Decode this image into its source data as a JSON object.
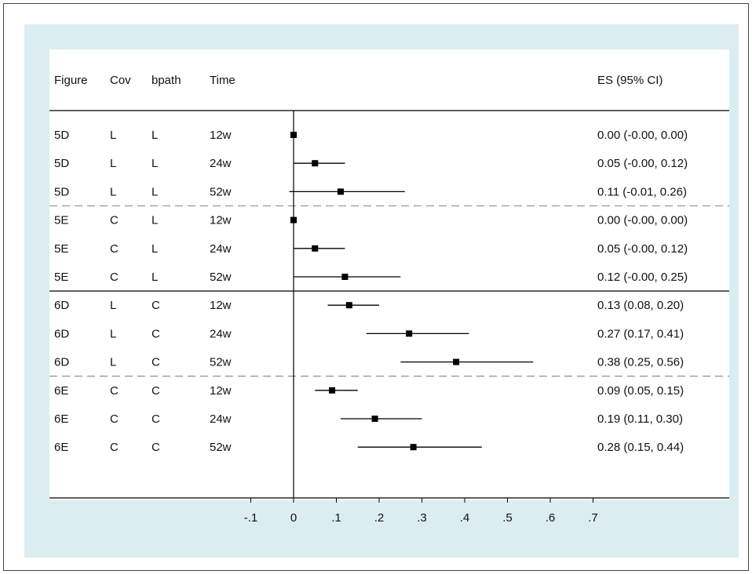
{
  "colors": {
    "outer_background": "#dcedf2",
    "plot_background": "#ffffff",
    "marker": "#000000",
    "group_separator_dashed": "#999999",
    "section_separator_solid": "#000000"
  },
  "chart_data": {
    "type": "forest",
    "columns": [
      "Figure",
      "Cov",
      "bpath",
      "Time"
    ],
    "estimate_column_header": "ES (95% CI)",
    "rows": [
      {
        "figure": "5D",
        "cov": "L",
        "bpath": "L",
        "time": "12w",
        "es": 0.0,
        "lo": -0.0,
        "hi": 0.0,
        "label": "0.00 (-0.00, 0.00)"
      },
      {
        "figure": "5D",
        "cov": "L",
        "bpath": "L",
        "time": "24w",
        "es": 0.05,
        "lo": -0.0,
        "hi": 0.12,
        "label": "0.05 (-0.00, 0.12)"
      },
      {
        "figure": "5D",
        "cov": "L",
        "bpath": "L",
        "time": "52w",
        "es": 0.11,
        "lo": -0.01,
        "hi": 0.26,
        "label": "0.11 (-0.01, 0.26)"
      },
      {
        "figure": "5E",
        "cov": "C",
        "bpath": "L",
        "time": "12w",
        "es": 0.0,
        "lo": -0.0,
        "hi": 0.0,
        "label": "0.00 (-0.00, 0.00)"
      },
      {
        "figure": "5E",
        "cov": "C",
        "bpath": "L",
        "time": "24w",
        "es": 0.05,
        "lo": -0.0,
        "hi": 0.12,
        "label": "0.05 (-0.00, 0.12)"
      },
      {
        "figure": "5E",
        "cov": "C",
        "bpath": "L",
        "time": "52w",
        "es": 0.12,
        "lo": -0.0,
        "hi": 0.25,
        "label": "0.12 (-0.00, 0.25)"
      },
      {
        "figure": "6D",
        "cov": "L",
        "bpath": "C",
        "time": "12w",
        "es": 0.13,
        "lo": 0.08,
        "hi": 0.2,
        "label": "0.13 (0.08, 0.20)"
      },
      {
        "figure": "6D",
        "cov": "L",
        "bpath": "C",
        "time": "24w",
        "es": 0.27,
        "lo": 0.17,
        "hi": 0.41,
        "label": "0.27 (0.17, 0.41)"
      },
      {
        "figure": "6D",
        "cov": "L",
        "bpath": "C",
        "time": "52w",
        "es": 0.38,
        "lo": 0.25,
        "hi": 0.56,
        "label": "0.38 (0.25, 0.56)"
      },
      {
        "figure": "6E",
        "cov": "C",
        "bpath": "C",
        "time": "12w",
        "es": 0.09,
        "lo": 0.05,
        "hi": 0.15,
        "label": "0.09 (0.05, 0.15)"
      },
      {
        "figure": "6E",
        "cov": "C",
        "bpath": "C",
        "time": "24w",
        "es": 0.19,
        "lo": 0.11,
        "hi": 0.3,
        "label": "0.19 (0.11, 0.30)"
      },
      {
        "figure": "6E",
        "cov": "C",
        "bpath": "C",
        "time": "52w",
        "es": 0.28,
        "lo": 0.15,
        "hi": 0.44,
        "label": "0.28 (0.15, 0.44)"
      }
    ],
    "separators": [
      {
        "after_row": 2,
        "style": "dashed"
      },
      {
        "after_row": 5,
        "style": "solid"
      },
      {
        "after_row": 8,
        "style": "dashed"
      }
    ],
    "x_ticks": [
      -0.1,
      0,
      0.1,
      0.2,
      0.3,
      0.4,
      0.5,
      0.6,
      0.7
    ],
    "x_tick_labels": [
      "-.1",
      "0",
      ".1",
      ".2",
      ".3",
      ".4",
      ".5",
      ".6",
      ".7"
    ],
    "xlim": [
      -0.1,
      0.7
    ],
    "reference_line": 0,
    "title": "",
    "xlabel": "",
    "ylabel": ""
  }
}
